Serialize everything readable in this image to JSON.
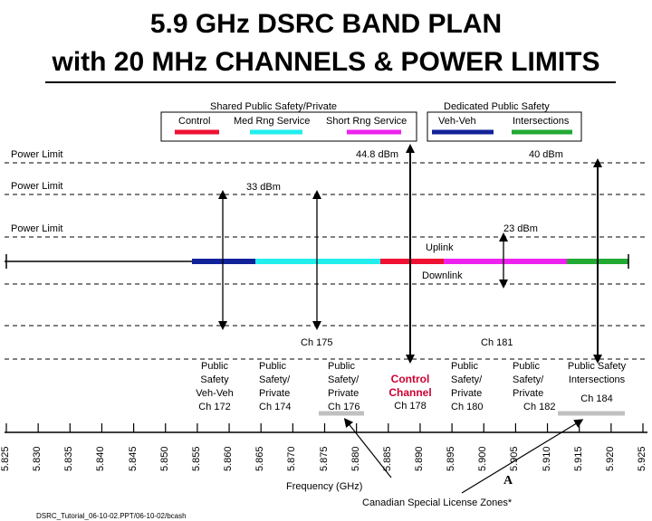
{
  "title": {
    "line1": "5.9 GHz DSRC  BAND PLAN",
    "line2": "with 20 MHz CHANNELS & POWER LIMITS"
  },
  "legend": {
    "shared_group": "Shared Public Safety/Private",
    "dedicated_group": "Dedicated Public Safety",
    "items": [
      {
        "label": "Control",
        "color": "#ee1133"
      },
      {
        "label": "Med Rng Service",
        "color": "#22eeee"
      },
      {
        "label": "Short Rng Service",
        "color": "#ee22ee"
      },
      {
        "label": "Veh-Veh",
        "color": "#112299"
      },
      {
        "label": "Intersections",
        "color": "#22aa33"
      }
    ]
  },
  "power": {
    "label": "Power Limit",
    "level_44_8": "44.8 dBm",
    "level_40": "40 dBm",
    "level_33": "33 dBm",
    "level_23": "23 dBm"
  },
  "band": {
    "uplink": "Uplink",
    "downlink": "Downlink",
    "ch175": "Ch 175",
    "ch181": "Ch 181"
  },
  "channels": [
    {
      "lines": [
        "Public",
        "Safety",
        "Veh-Veh",
        "Ch 172"
      ]
    },
    {
      "lines": [
        "Public",
        "Safety/",
        "Private",
        "Ch 174"
      ]
    },
    {
      "lines": [
        "Public",
        "Safety/",
        "Private",
        "Ch 176"
      ]
    },
    {
      "lines": [
        "Control",
        "Channel",
        "Ch 178"
      ]
    },
    {
      "lines": [
        "Public",
        "Safety/",
        "Private",
        "Ch 180"
      ]
    },
    {
      "lines": [
        "Public",
        "Safety/",
        "Private",
        "Ch 182"
      ]
    },
    {
      "lines": [
        "Public Safety",
        "Intersections",
        "Ch 184"
      ]
    }
  ],
  "axis": {
    "ticks": [
      "5.825",
      "5.830",
      "5.835",
      "5.840",
      "5.845",
      "5.850",
      "5.855",
      "5.860",
      "5.865",
      "5.870",
      "5.875",
      "5.880",
      "5.885",
      "5.890",
      "5.895",
      "5.900",
      "5.905",
      "5.910",
      "5.915",
      "5.920",
      "5.925"
    ],
    "xlabel": "Frequency (GHz)"
  },
  "annotation": {
    "marker": "A",
    "canadian": "Canadian Special License Zones*"
  },
  "footer": "DSRC_Tutorial_06-10-02.PPT/06-10-02/bcash"
}
